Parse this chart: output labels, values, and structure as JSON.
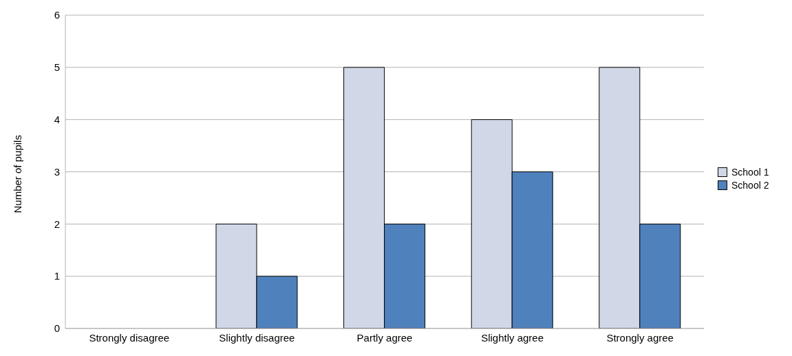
{
  "chart_data": {
    "type": "bar",
    "ylabel": "Number of pupils",
    "categories": [
      "Strongly disagree",
      "Slightly disagree",
      "Partly agree",
      "Slightly agree",
      "Strongly agree"
    ],
    "series": [
      {
        "name": "School 1",
        "color": "#d0d8e8",
        "values": [
          0,
          2,
          5,
          4,
          5
        ]
      },
      {
        "name": "School 2",
        "color": "#4f81bd",
        "values": [
          0,
          1,
          2,
          3,
          2
        ]
      }
    ],
    "ylim": [
      0,
      6
    ],
    "yticks": [
      0,
      1,
      2,
      3,
      4,
      5,
      6
    ],
    "grid": "y",
    "legend": "right"
  }
}
